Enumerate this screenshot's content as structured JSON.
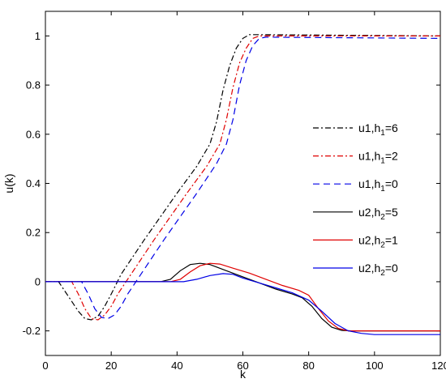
{
  "chart_data": {
    "type": "line",
    "title": "",
    "xlabel": "k",
    "ylabel": "u(k)",
    "xlim": [
      0,
      120
    ],
    "ylim": [
      -0.3,
      1.1
    ],
    "xticks": [
      0,
      20,
      40,
      60,
      80,
      100,
      120
    ],
    "yticks": [
      -0.2,
      0,
      0.2,
      0.4,
      0.6,
      0.8,
      1
    ],
    "xtick_labels": [
      "0",
      "20",
      "40",
      "60",
      "80",
      "100",
      "120"
    ],
    "ytick_labels": [
      "-0.2",
      "0",
      "0.2",
      "0.4",
      "0.6",
      "0.8",
      "1"
    ],
    "grid": false,
    "legend_position": "right",
    "series": [
      {
        "name": "u1,h1=6",
        "label_main": "u1,h",
        "label_sub": "1",
        "label_tail": "=6",
        "color": "#000000",
        "dash": "dashdot",
        "points": [
          [
            0,
            0
          ],
          [
            4,
            0
          ],
          [
            7,
            -0.06
          ],
          [
            10,
            -0.12
          ],
          [
            12,
            -0.15
          ],
          [
            14,
            -0.155
          ],
          [
            16,
            -0.14
          ],
          [
            18,
            -0.1
          ],
          [
            20,
            -0.05
          ],
          [
            23,
            0.03
          ],
          [
            30,
            0.17
          ],
          [
            40,
            0.36
          ],
          [
            46,
            0.47
          ],
          [
            50,
            0.56
          ],
          [
            52,
            0.65
          ],
          [
            54,
            0.78
          ],
          [
            56,
            0.88
          ],
          [
            58,
            0.95
          ],
          [
            60,
            0.99
          ],
          [
            62,
            1.005
          ],
          [
            65,
            1.005
          ],
          [
            120,
            1.0
          ]
        ]
      },
      {
        "name": "u1,h1=2",
        "label_main": "u1,h",
        "label_sub": "1",
        "label_tail": "=2",
        "color": "#e00000",
        "dash": "dashdot",
        "points": [
          [
            0,
            0
          ],
          [
            8,
            0
          ],
          [
            10,
            -0.05
          ],
          [
            12,
            -0.11
          ],
          [
            14,
            -0.15
          ],
          [
            16,
            -0.155
          ],
          [
            18,
            -0.135
          ],
          [
            20,
            -0.1
          ],
          [
            22,
            -0.05
          ],
          [
            26,
            0.03
          ],
          [
            33,
            0.17
          ],
          [
            43,
            0.36
          ],
          [
            49,
            0.47
          ],
          [
            53,
            0.56
          ],
          [
            55,
            0.66
          ],
          [
            57,
            0.79
          ],
          [
            59,
            0.89
          ],
          [
            61,
            0.95
          ],
          [
            63,
            0.99
          ],
          [
            65,
            1.0
          ],
          [
            120,
            1.0
          ]
        ]
      },
      {
        "name": "u1,h1=0",
        "label_main": "u1,h",
        "label_sub": "1",
        "label_tail": "=0",
        "color": "#0000e6",
        "dash": "dash",
        "points": [
          [
            0,
            0
          ],
          [
            11,
            0
          ],
          [
            13,
            -0.05
          ],
          [
            15,
            -0.11
          ],
          [
            17,
            -0.145
          ],
          [
            19,
            -0.15
          ],
          [
            21,
            -0.135
          ],
          [
            23,
            -0.1
          ],
          [
            25,
            -0.05
          ],
          [
            29,
            0.03
          ],
          [
            36,
            0.17
          ],
          [
            46,
            0.36
          ],
          [
            52,
            0.48
          ],
          [
            55,
            0.56
          ],
          [
            57,
            0.66
          ],
          [
            59,
            0.8
          ],
          [
            61,
            0.9
          ],
          [
            63,
            0.96
          ],
          [
            65,
            0.99
          ],
          [
            67,
            0.995
          ],
          [
            120,
            0.99
          ]
        ]
      },
      {
        "name": "u2,h2=5",
        "label_main": "u2,h",
        "label_sub": "2",
        "label_tail": "=5",
        "color": "#000000",
        "dash": "solid",
        "points": [
          [
            0,
            0
          ],
          [
            35,
            0
          ],
          [
            38,
            0.01
          ],
          [
            41,
            0.045
          ],
          [
            44,
            0.07
          ],
          [
            47,
            0.075
          ],
          [
            50,
            0.07
          ],
          [
            54,
            0.05
          ],
          [
            60,
            0.02
          ],
          [
            65,
            -0.005
          ],
          [
            70,
            -0.03
          ],
          [
            75,
            -0.05
          ],
          [
            78,
            -0.065
          ],
          [
            81,
            -0.1
          ],
          [
            84,
            -0.15
          ],
          [
            87,
            -0.185
          ],
          [
            90,
            -0.198
          ],
          [
            93,
            -0.2
          ],
          [
            120,
            -0.2
          ]
        ]
      },
      {
        "name": "u2,h2=1",
        "label_main": "u2,h",
        "label_sub": "2",
        "label_tail": "=1",
        "color": "#e00000",
        "dash": "solid",
        "points": [
          [
            0,
            0
          ],
          [
            38,
            0
          ],
          [
            41,
            0.01
          ],
          [
            44,
            0.04
          ],
          [
            47,
            0.065
          ],
          [
            50,
            0.075
          ],
          [
            53,
            0.072
          ],
          [
            57,
            0.055
          ],
          [
            62,
            0.035
          ],
          [
            67,
            0.01
          ],
          [
            72,
            -0.015
          ],
          [
            77,
            -0.035
          ],
          [
            80,
            -0.055
          ],
          [
            83,
            -0.11
          ],
          [
            86,
            -0.16
          ],
          [
            89,
            -0.19
          ],
          [
            92,
            -0.2
          ],
          [
            120,
            -0.2
          ]
        ]
      },
      {
        "name": "u2,h2=0",
        "label_main": "u2,h",
        "label_sub": "2",
        "label_tail": "=0",
        "color": "#0000e6",
        "dash": "solid",
        "points": [
          [
            0,
            0
          ],
          [
            42,
            0
          ],
          [
            46,
            0.01
          ],
          [
            50,
            0.025
          ],
          [
            54,
            0.033
          ],
          [
            57,
            0.03
          ],
          [
            60,
            0.015
          ],
          [
            65,
            -0.005
          ],
          [
            70,
            -0.025
          ],
          [
            75,
            -0.045
          ],
          [
            80,
            -0.075
          ],
          [
            84,
            -0.12
          ],
          [
            88,
            -0.17
          ],
          [
            92,
            -0.2
          ],
          [
            96,
            -0.21
          ],
          [
            100,
            -0.215
          ],
          [
            120,
            -0.215
          ]
        ]
      }
    ]
  }
}
